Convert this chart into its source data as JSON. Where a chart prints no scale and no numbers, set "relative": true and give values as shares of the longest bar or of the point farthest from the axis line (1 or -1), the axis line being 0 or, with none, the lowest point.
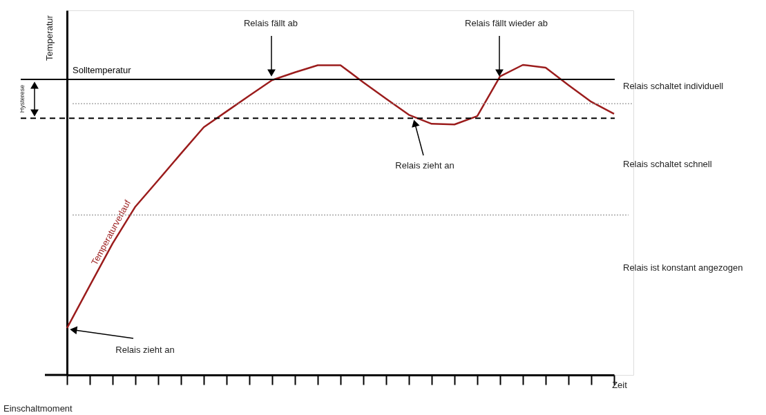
{
  "chart_data": {
    "type": "line",
    "relative": true,
    "ylabel": "Temperatur",
    "xlabel": "Zeit",
    "categories": [
      null,
      null,
      null,
      null,
      null,
      null,
      null,
      null,
      null,
      null,
      null,
      null,
      null,
      null,
      null,
      null,
      null,
      null,
      null,
      null,
      null,
      null,
      null,
      null,
      null
    ],
    "series": [
      {
        "name": "Temperaturverlauf",
        "color": "#9b1c1c",
        "values": [
          0.151,
          0.288,
          0.424,
          0.543,
          0.628,
          0.714,
          0.799,
          0.85,
          0.901,
          0.951,
          0.976,
          0.999,
          0.999,
          0.944,
          0.891,
          0.839,
          0.81,
          0.808,
          0.835,
          0.963,
          1,
          0.991,
          0.935,
          0.881,
          0.842
        ]
      }
    ],
    "ref_lines": [
      {
        "axis": "y",
        "value": 0.953,
        "label": "Solltemperatur",
        "color": "#000000",
        "line_style": "solid"
      },
      {
        "axis": "y",
        "value": 0.875,
        "color": "#999999",
        "line_style": "dotted"
      },
      {
        "axis": "y",
        "value": 0.828,
        "color": "#000000",
        "line_style": "dashed"
      },
      {
        "axis": "y",
        "value": 0.516,
        "color": "#999999",
        "line_style": "dotted"
      }
    ],
    "annotations": [
      "Relais fällt ab",
      "Relais fällt wieder ab",
      "Relais zieht an",
      "Relais zieht an",
      "Relais schaltet individuell",
      "Relais schaltet schnell",
      "Relais ist konstant angezogen",
      "Einschaltmoment",
      "Hysterese"
    ],
    "grid": false,
    "marker": "none",
    "line_style": "solid"
  }
}
